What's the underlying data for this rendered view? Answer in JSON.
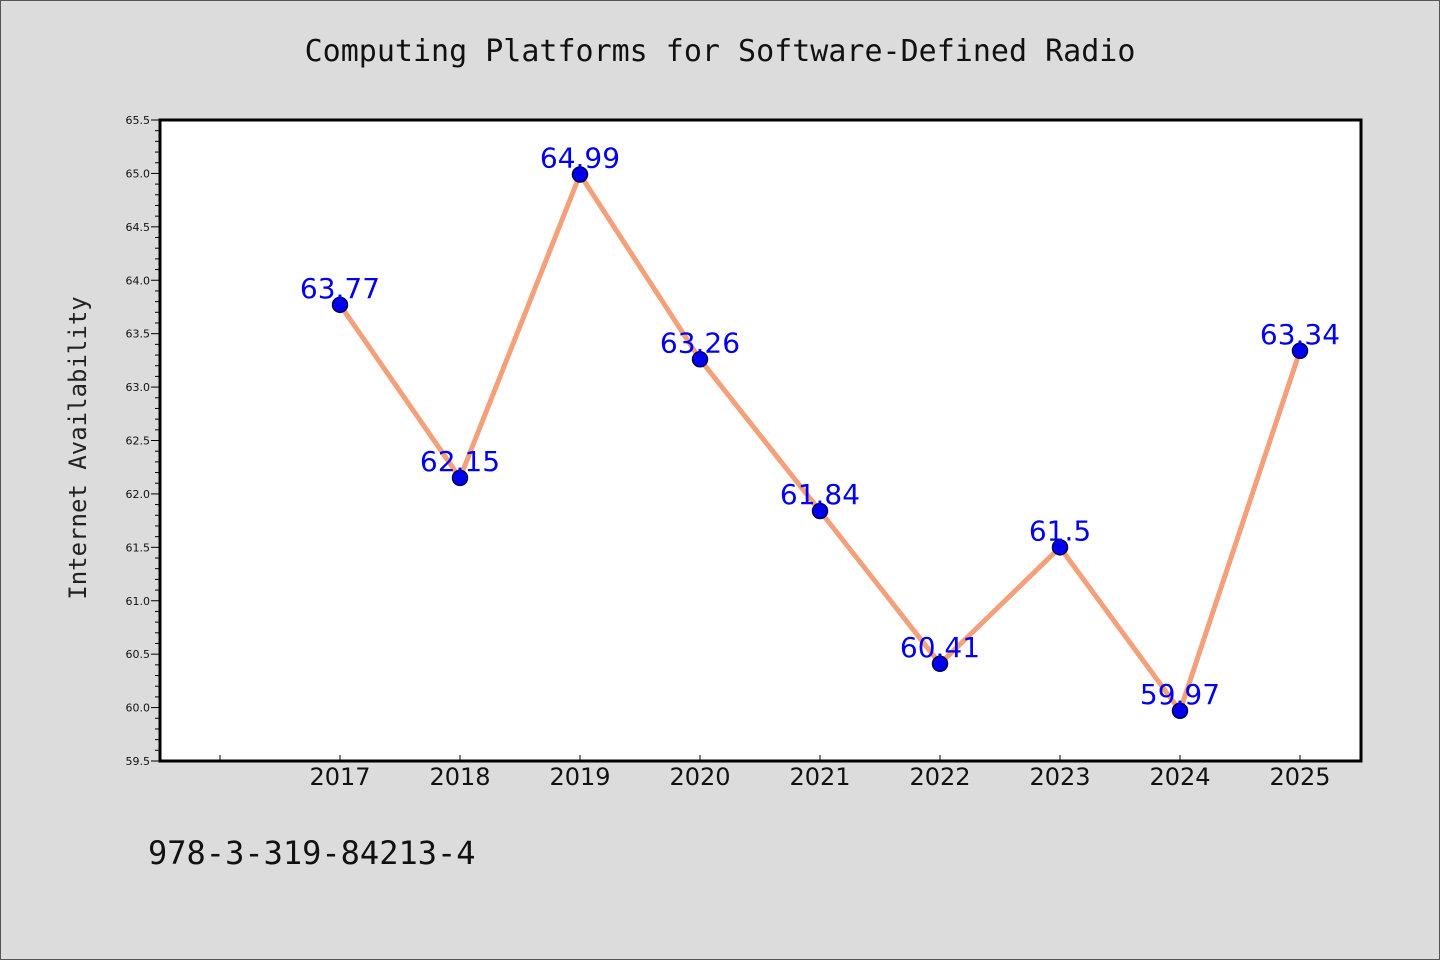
{
  "chart_data": {
    "type": "line",
    "title": "Computing Platforms for Software-Defined Radio",
    "xlabel": "",
    "ylabel": "Internet Availability",
    "categories": [
      "2017",
      "2018",
      "2019",
      "2020",
      "2021",
      "2022",
      "2023",
      "2024",
      "2025"
    ],
    "series": [
      {
        "values": [
          63.77,
          62.15,
          64.99,
          63.26,
          61.84,
          60.41,
          61.5,
          59.97,
          63.34
        ],
        "data_labels": [
          "63.77",
          "62.15",
          "64.99",
          "63.26",
          "61.84",
          "60.41",
          "61.5",
          "59.97",
          "63.34"
        ]
      }
    ],
    "ylim": [
      59.5,
      65.5
    ],
    "y_ticks": [
      "59.5",
      "60.0",
      "60.5",
      "61.0",
      "61.5",
      "62.0",
      "62.5",
      "63.0",
      "63.5",
      "64.0",
      "64.5",
      "65.0",
      "65.5"
    ],
    "grid": false,
    "legend": "none",
    "colors": {
      "line": "#f4a07a",
      "marker": "#0000ee",
      "marker_edge": "#000055",
      "labels": "#0000ee",
      "plot_background": "#ffffff",
      "figure_background": "#dcdcdc"
    }
  },
  "annotation": "978-3-319-84213-4"
}
